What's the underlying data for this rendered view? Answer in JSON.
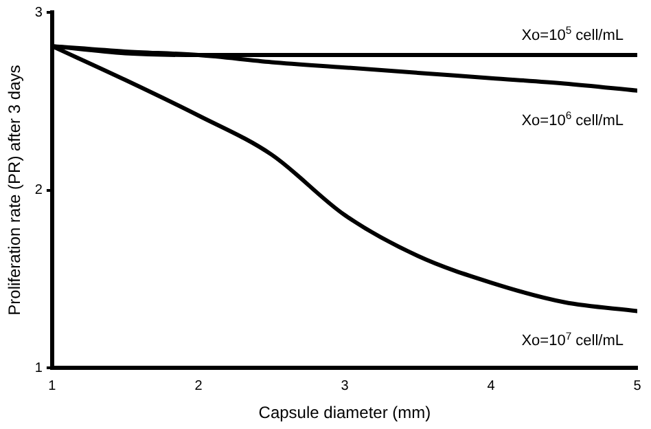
{
  "chart_data": {
    "type": "line",
    "xlabel": "Capsule diameter (mm)",
    "ylabel": "Proliferation rate (PR) after 3 days",
    "x": [
      1,
      1.5,
      2,
      2.5,
      3,
      3.5,
      4,
      4.5,
      5
    ],
    "series": [
      {
        "name": "Xo=10$^{5}$ cell/mL",
        "color": "#000000",
        "values": [
          2.81,
          2.77,
          2.76,
          2.76,
          2.76,
          2.76,
          2.76,
          2.76,
          2.76
        ]
      },
      {
        "name": "Xo=10$^{6}$ cell/mL",
        "color": "#000000",
        "values": [
          2.81,
          2.78,
          2.76,
          2.72,
          2.69,
          2.66,
          2.63,
          2.6,
          2.56
        ]
      },
      {
        "name": "Xo=10$^{7}$ cell/mL",
        "color": "#000000",
        "values": [
          2.81,
          2.62,
          2.42,
          2.2,
          1.86,
          1.63,
          1.48,
          1.37,
          1.32
        ]
      }
    ],
    "xlim": [
      1,
      5
    ],
    "ylim": [
      1,
      3
    ],
    "xticks": [
      1,
      2,
      3,
      4,
      5
    ],
    "yticks": [
      1,
      2,
      3
    ],
    "grid": false,
    "legend": false,
    "marker": "none",
    "line_style": "solid"
  }
}
